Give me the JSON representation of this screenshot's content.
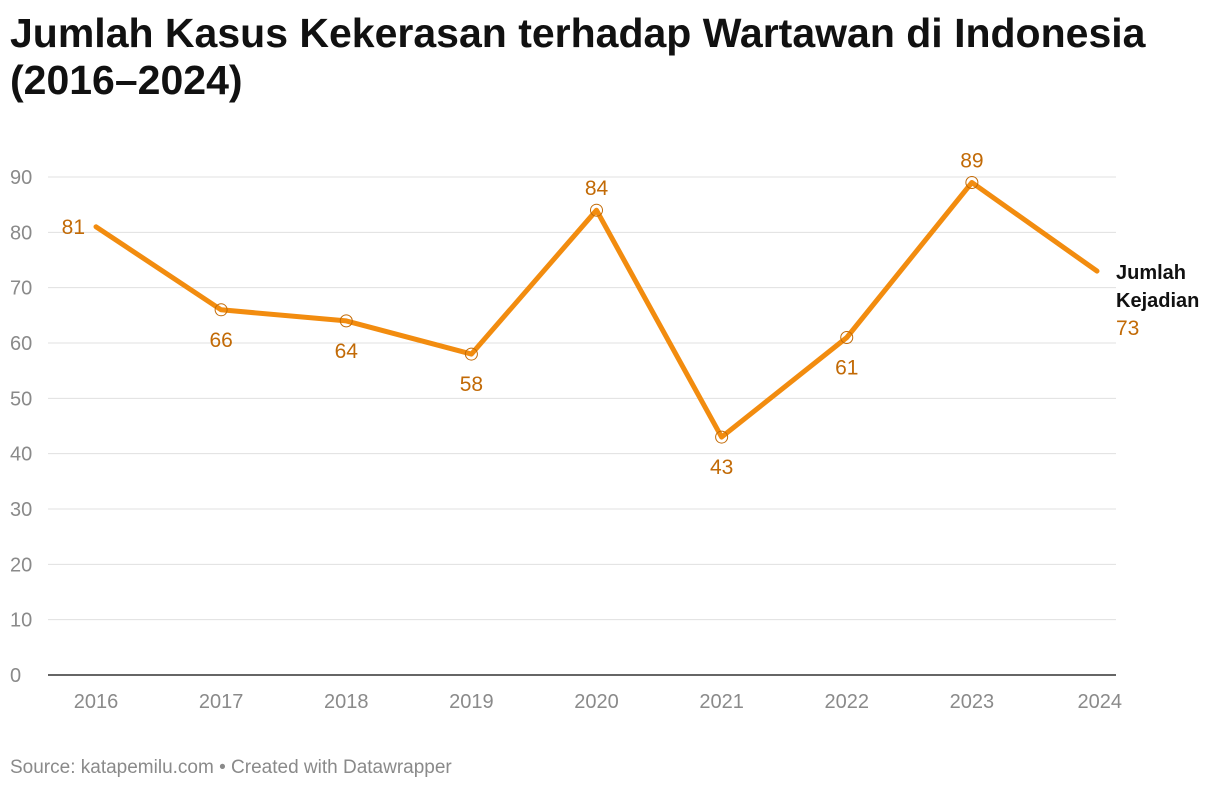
{
  "chart_title": "Jumlah Kasus Kekerasan terhadap Wartawan di Indonesia (2016–2024)",
  "footer": {
    "source_label": "Source:",
    "source_name": "katapemilu.com",
    "separator": "•",
    "created_with": "Created with Datawrapper"
  },
  "colors": {
    "line": "#f28c0f",
    "label": "#c26a06",
    "grid": "#e0e0e0",
    "axis": "#333333",
    "tick": "#8a8a8a",
    "series_name": "#111111"
  },
  "chart_data": {
    "type": "line",
    "title": "Jumlah Kasus Kekerasan terhadap Wartawan di Indonesia (2016–2024)",
    "xlabel": "",
    "ylabel": "",
    "x": [
      "2016",
      "2017",
      "2018",
      "2019",
      "2020",
      "2021",
      "2022",
      "2023",
      "2024"
    ],
    "ylim": [
      0,
      90
    ],
    "yticks": [
      0,
      10,
      20,
      30,
      40,
      50,
      60,
      70,
      80,
      90
    ],
    "grid": true,
    "legend": "none",
    "series": [
      {
        "name": "Jumlah Kejadian",
        "name_lines": [
          "Jumlah",
          "Kejadian"
        ],
        "values": [
          81,
          66,
          64,
          58,
          84,
          43,
          61,
          89,
          73
        ],
        "label_placement": [
          "left",
          "below",
          "below",
          "below",
          "above",
          "below",
          "below",
          "above",
          "end"
        ]
      }
    ]
  }
}
